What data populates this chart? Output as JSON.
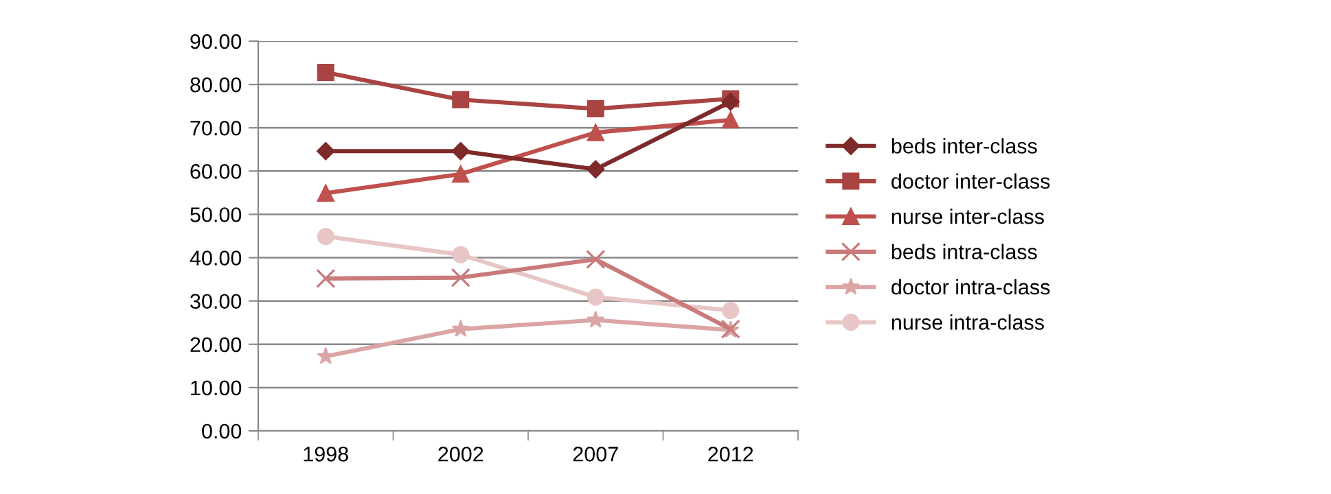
{
  "chart_data": {
    "type": "line",
    "categories": [
      "1998",
      "2002",
      "2007",
      "2012"
    ],
    "series": [
      {
        "name": "beds inter-class",
        "color": "#7f2a2a",
        "marker": "diamond",
        "values": [
          64.6,
          64.6,
          60.4,
          76.0
        ]
      },
      {
        "name": "doctor inter-class",
        "color": "#a94442",
        "marker": "square",
        "values": [
          82.8,
          76.5,
          74.4,
          76.7
        ]
      },
      {
        "name": "nurse inter-class",
        "color": "#c0504d",
        "marker": "triangle",
        "values": [
          54.9,
          59.3,
          68.9,
          71.8
        ]
      },
      {
        "name": "beds intra-class",
        "color": "#c97a7a",
        "marker": "cross",
        "values": [
          35.2,
          35.4,
          39.6,
          23.5
        ]
      },
      {
        "name": "doctor intra-class",
        "color": "#dba5a5",
        "marker": "star",
        "values": [
          17.2,
          23.5,
          25.6,
          23.3
        ]
      },
      {
        "name": "nurse intra-class",
        "color": "#e8c6c6",
        "marker": "circle",
        "values": [
          44.9,
          40.7,
          30.9,
          27.8
        ]
      }
    ],
    "ylim": [
      0,
      90
    ],
    "yticks": [
      {
        "value": 0,
        "label": "0.00"
      },
      {
        "value": 10,
        "label": "10.00"
      },
      {
        "value": 20,
        "label": "20.00"
      },
      {
        "value": 30,
        "label": "30.00"
      },
      {
        "value": 40,
        "label": "40.00"
      },
      {
        "value": 50,
        "label": "50.00"
      },
      {
        "value": 60,
        "label": "60.00"
      },
      {
        "value": 70,
        "label": "70.00"
      },
      {
        "value": 80,
        "label": "80.00"
      },
      {
        "value": 90,
        "label": "90.00"
      }
    ],
    "grid": "y",
    "legend": "right",
    "line_style": "solid"
  }
}
